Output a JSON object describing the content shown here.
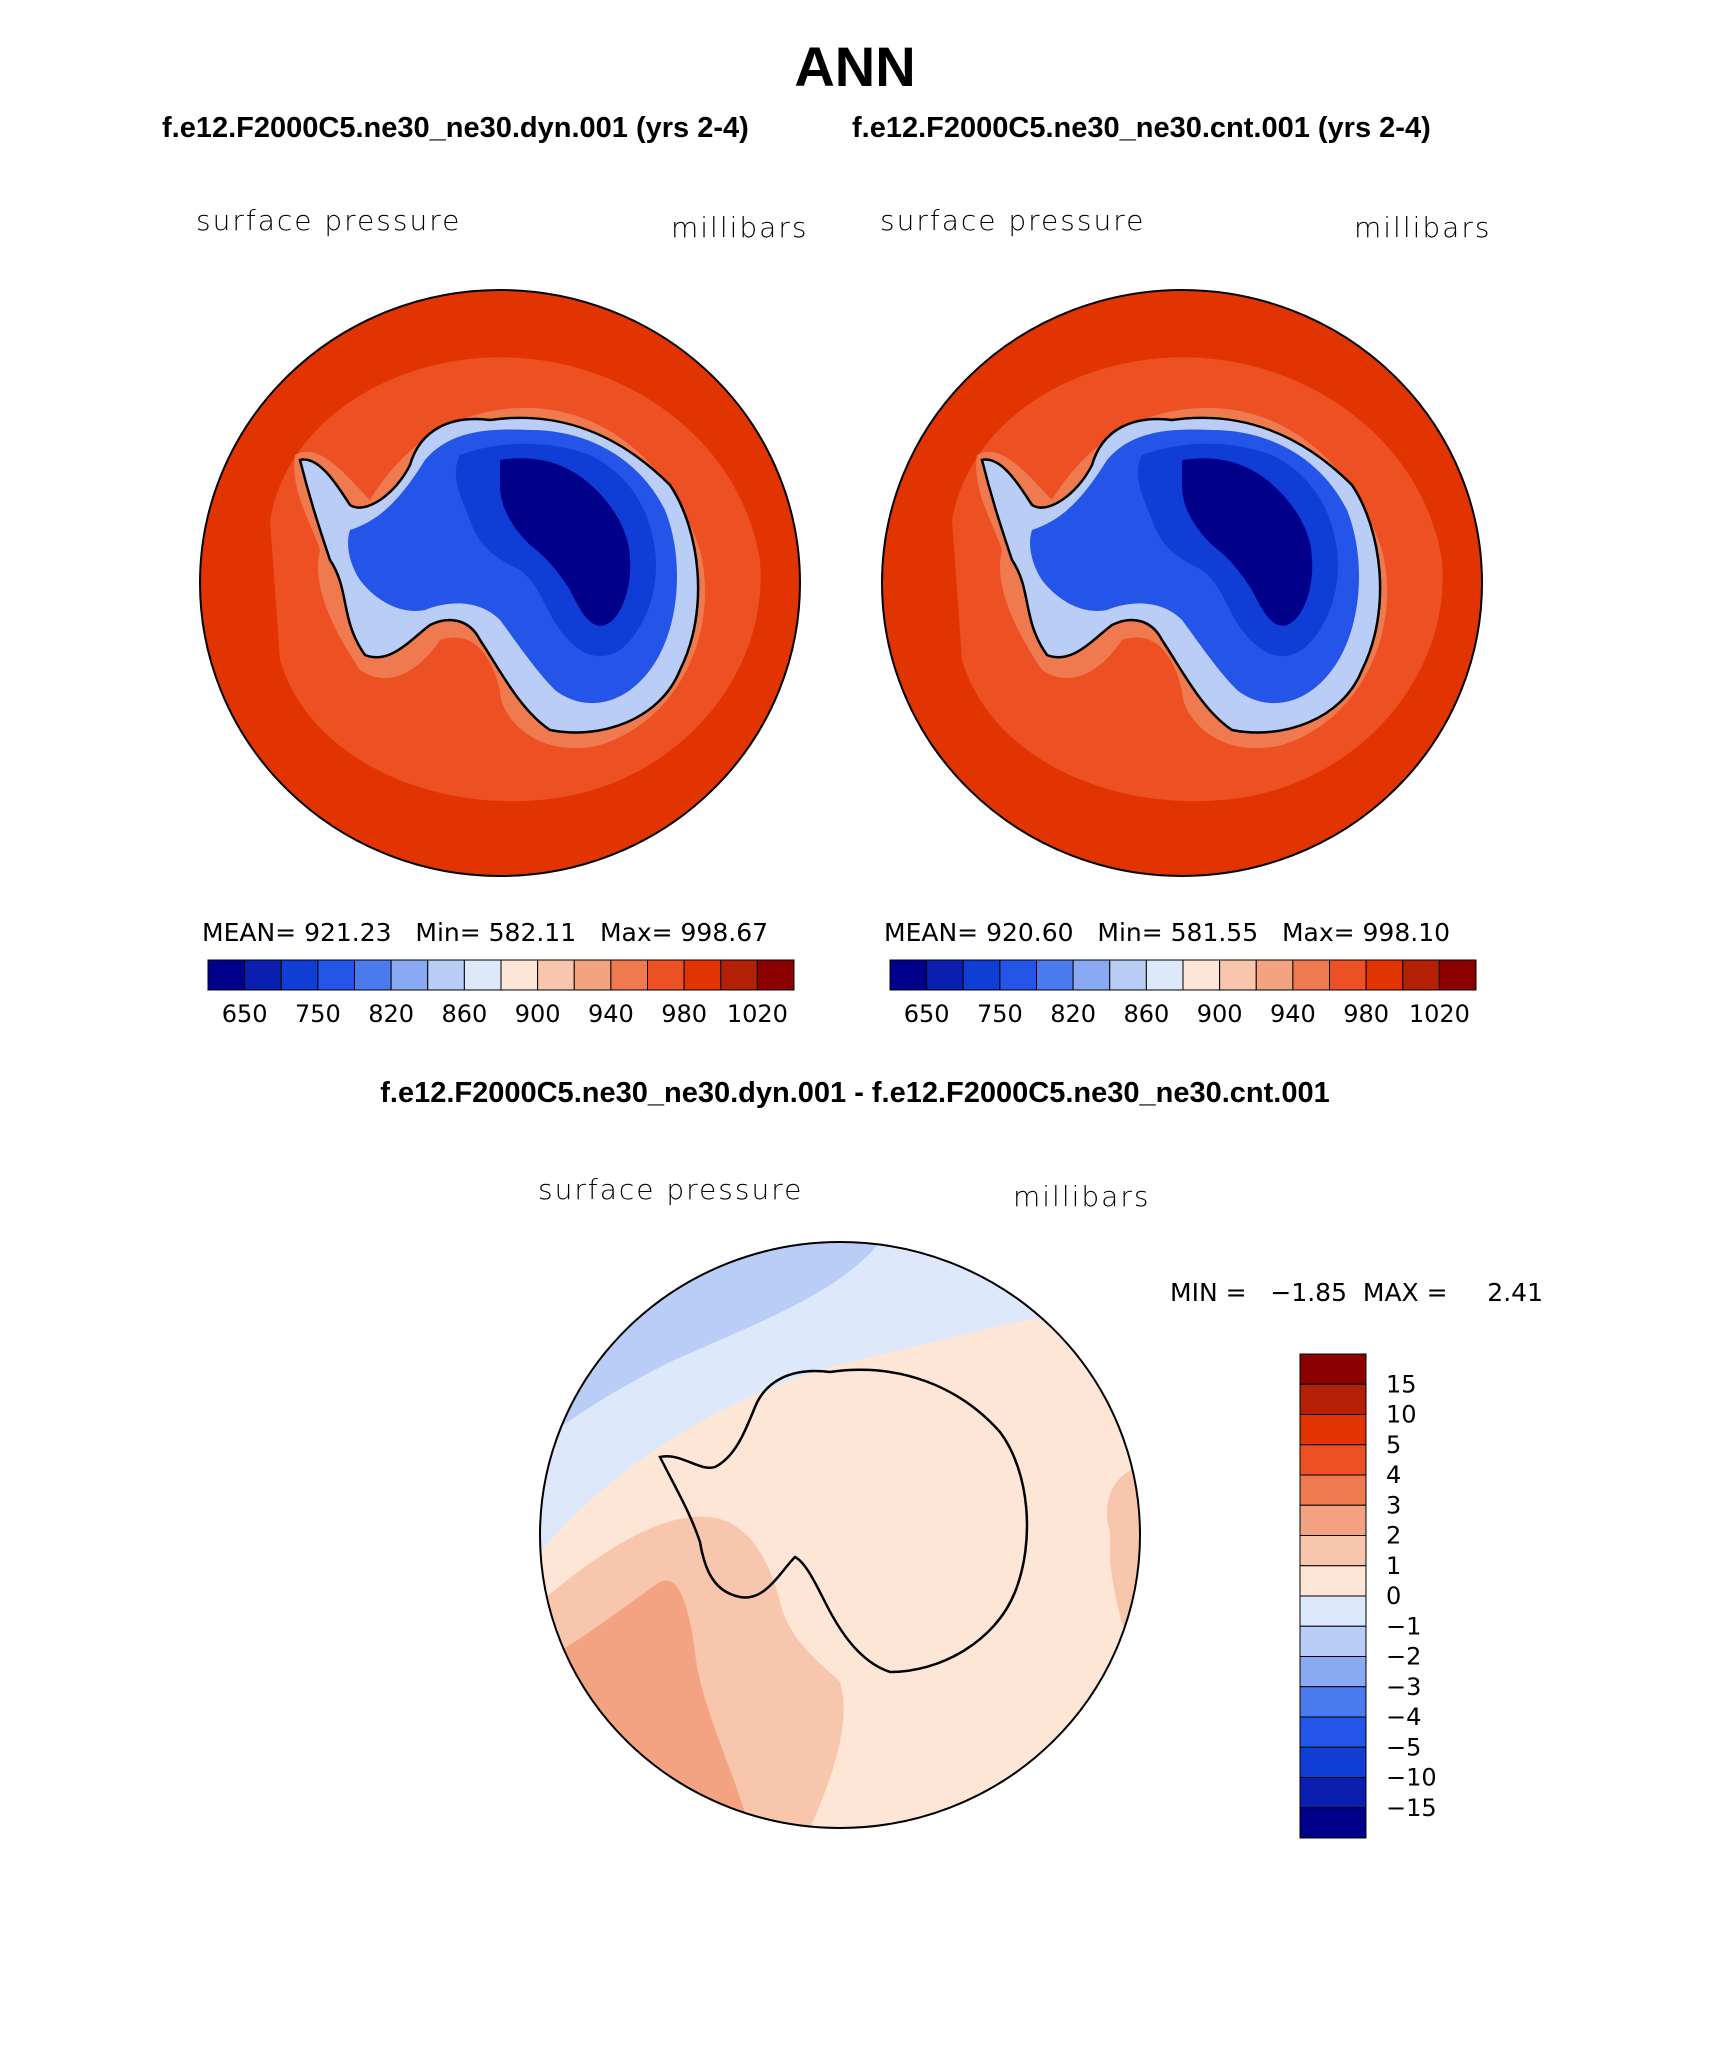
{
  "page": {
    "title": "ANN",
    "case_labels": [
      "f.e12.F2000C5.ne30_ne30.dyn.001 (yrs 2-4)",
      "f.e12.F2000C5.ne30_ne30.cnt.001 (yrs 2-4)"
    ],
    "diff_title": "f.e12.F2000C5.ne30_ne30.dyn.001 - f.e12.F2000C5.ne30_ne30.cnt.001"
  },
  "panels": [
    {
      "variable": "surface pressure",
      "units": "millibars",
      "stats": "MEAN= 921.23   Min= 582.11   Max= 998.67"
    },
    {
      "variable": "surface pressure",
      "units": "millibars",
      "stats": "MEAN= 920.60   Min= 581.55   Max= 998.10"
    },
    {
      "variable": "surface pressure",
      "units": "millibars",
      "stats": "MIN =   −1.85  MAX =     2.41"
    }
  ],
  "colors": {
    "abs_scale": [
      "#00008b",
      "#0a1fb0",
      "#0f3dd6",
      "#2455e8",
      "#4a7aee",
      "#89aaf2",
      "#b9cdf6",
      "#dde8fa",
      "#fde6d6",
      "#f8c6ad",
      "#f4a382",
      "#f07a4f",
      "#ec5023",
      "#e13400",
      "#b32005",
      "#8b0000"
    ],
    "diff_scale": [
      "#8b0000",
      "#b32005",
      "#e13400",
      "#ec5023",
      "#f07a4f",
      "#f4a382",
      "#f8c6ad",
      "#fde6d6",
      "#dde8fa",
      "#b9cdf6",
      "#89aaf2",
      "#4a7aee",
      "#2455e8",
      "#0f3dd6",
      "#0a1fb0",
      "#00008b"
    ],
    "ocean_abs": "#e13400",
    "ocean_abs_inner": "#ec5023",
    "diff_bg": "#fde6d6"
  },
  "chart_data": [
    {
      "type": "heatmap",
      "title": "surface pressure",
      "units": "millibars",
      "projection": "south polar stereographic",
      "summary": {
        "mean": 921.23,
        "min": 582.11,
        "max": 998.67
      },
      "colorbar_ticks": [
        "650",
        "750",
        "820",
        "860",
        "900",
        "940",
        "980",
        "1020"
      ],
      "levels": [
        600,
        650,
        700,
        750,
        800,
        820,
        840,
        860,
        880,
        900,
        920,
        940,
        960,
        980,
        1000,
        1020
      ]
    },
    {
      "type": "heatmap",
      "title": "surface pressure",
      "units": "millibars",
      "projection": "south polar stereographic",
      "summary": {
        "mean": 920.6,
        "min": 581.55,
        "max": 998.1
      },
      "colorbar_ticks": [
        "650",
        "750",
        "820",
        "860",
        "900",
        "940",
        "980",
        "1020"
      ],
      "levels": [
        600,
        650,
        700,
        750,
        800,
        820,
        840,
        860,
        880,
        900,
        920,
        940,
        960,
        980,
        1000,
        1020
      ]
    },
    {
      "type": "heatmap",
      "title": "surface pressure",
      "units": "millibars",
      "projection": "south polar stereographic",
      "summary": {
        "min": -1.85,
        "max": 2.41
      },
      "colorbar_ticks": [
        "15",
        "10",
        "5",
        "4",
        "3",
        "2",
        "1",
        "0",
        "−1",
        "−2",
        "−3",
        "−4",
        "−5",
        "−10",
        "−15"
      ]
    }
  ]
}
